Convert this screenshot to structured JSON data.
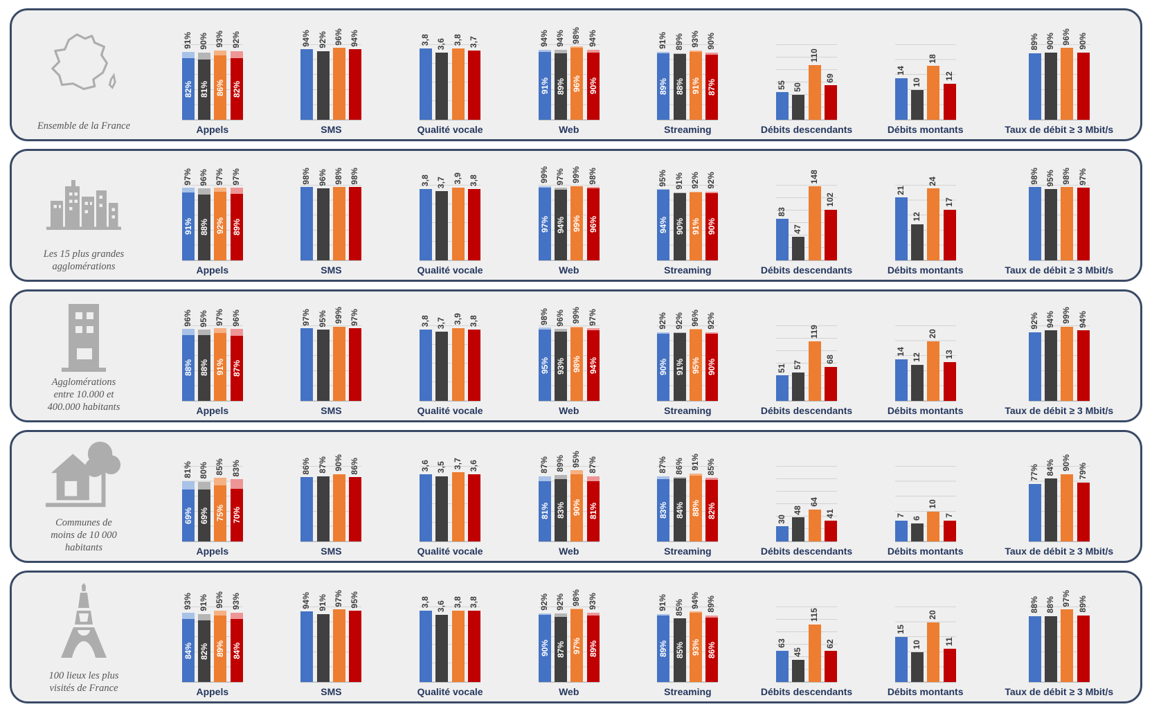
{
  "palette": {
    "solid": [
      "#4472C4",
      "#404040",
      "#ED7D31",
      "#C00000"
    ],
    "light": [
      "#A9C2E8",
      "#B5B5B5",
      "#F5B183",
      "#EE9596"
    ],
    "panel_bg": "#EFEFEF",
    "panel_border": "#3A4A66",
    "grid_line": "#D2D2D2",
    "metric_label_color": "#24365E",
    "region_label_color": "#555555",
    "icon_color": "#ADADAD"
  },
  "chart_data": {
    "type": "bar",
    "series_count_per_chart": 4,
    "legend_position": "none",
    "grid": "on",
    "metrics": [
      {
        "key": "appels",
        "label": "Appels",
        "kind": "stacked-pct",
        "max": 100,
        "grid_step_pct": 20
      },
      {
        "key": "sms",
        "label": "SMS",
        "kind": "pct",
        "max": 100,
        "grid_step_pct": 20
      },
      {
        "key": "vocale",
        "label": "Qualité vocale",
        "kind": "score",
        "max": 4,
        "grid_step_pct": 25
      },
      {
        "key": "web",
        "label": "Web",
        "kind": "stacked-pct",
        "max": 100,
        "grid_step_pct": 20
      },
      {
        "key": "streaming",
        "label": "Streaming",
        "kind": "stacked-pct",
        "max": 100,
        "grid_step_pct": 20
      },
      {
        "key": "debits_desc",
        "label": "Débits descendants",
        "kind": "mbps",
        "max": 150,
        "grid_step_pct": 16.6667
      },
      {
        "key": "debits_mont",
        "label": "Débits montants",
        "kind": "mbps",
        "max": 25,
        "grid_step_pct": 20
      },
      {
        "key": "taux3",
        "label": "Taux de débit ≥ 3 Mbit/s",
        "kind": "pct",
        "max": 100,
        "grid_step_pct": 20
      }
    ],
    "rows": [
      {
        "icon": "france-map-icon",
        "label_lines": [
          "Ensemble de la France"
        ],
        "appels": {
          "total": [
            91,
            90,
            93,
            92
          ],
          "base": [
            82,
            81,
            86,
            82
          ]
        },
        "sms": [
          94,
          92,
          96,
          94
        ],
        "vocale": [
          "3,8",
          "3,6",
          "3,8",
          "3,7"
        ],
        "web": {
          "total": [
            94,
            94,
            98,
            94
          ],
          "base": [
            91,
            89,
            96,
            90
          ]
        },
        "streaming": {
          "total": [
            91,
            89,
            93,
            90
          ],
          "base": [
            89,
            88,
            91,
            87
          ]
        },
        "debits_desc": [
          55,
          50,
          110,
          69
        ],
        "debits_mont": [
          14,
          10,
          18,
          12
        ],
        "taux3": [
          89,
          90,
          96,
          90
        ]
      },
      {
        "icon": "city-skyline-icon",
        "label_lines": [
          "Les 15 plus grandes",
          "agglomérations"
        ],
        "appels": {
          "total": [
            97,
            96,
            97,
            97
          ],
          "base": [
            91,
            88,
            92,
            89
          ]
        },
        "sms": [
          98,
          96,
          98,
          98
        ],
        "vocale": [
          "3,8",
          "3,7",
          "3,9",
          "3,8"
        ],
        "web": {
          "total": [
            99,
            97,
            99,
            98
          ],
          "base": [
            97,
            94,
            99,
            96
          ]
        },
        "streaming": {
          "total": [
            95,
            91,
            92,
            92
          ],
          "base": [
            94,
            90,
            91,
            90
          ]
        },
        "debits_desc": [
          83,
          47,
          148,
          102
        ],
        "debits_mont": [
          21,
          12,
          24,
          17
        ],
        "taux3": [
          98,
          95,
          98,
          97
        ]
      },
      {
        "icon": "building-icon",
        "label_lines": [
          "Agglomérations",
          "entre 10.000 et",
          "400.000 habitants"
        ],
        "appels": {
          "total": [
            96,
            95,
            97,
            96
          ],
          "base": [
            88,
            88,
            91,
            87
          ]
        },
        "sms": [
          97,
          95,
          99,
          97
        ],
        "vocale": [
          "3,8",
          "3,7",
          "3,9",
          "3,8"
        ],
        "web": {
          "total": [
            98,
            96,
            99,
            97
          ],
          "base": [
            95,
            93,
            98,
            94
          ]
        },
        "streaming": {
          "total": [
            92,
            92,
            96,
            92
          ],
          "base": [
            90,
            91,
            95,
            90
          ]
        },
        "debits_desc": [
          51,
          57,
          119,
          68
        ],
        "debits_mont": [
          14,
          12,
          20,
          13
        ],
        "taux3": [
          92,
          94,
          99,
          94
        ]
      },
      {
        "icon": "house-tree-icon",
        "label_lines": [
          "Communes de",
          "moins de 10 000",
          "habitants"
        ],
        "appels": {
          "total": [
            81,
            80,
            85,
            83
          ],
          "base": [
            69,
            69,
            75,
            70
          ]
        },
        "sms": [
          86,
          87,
          90,
          86
        ],
        "vocale": [
          "3,6",
          "3,5",
          "3,7",
          "3,6"
        ],
        "web": {
          "total": [
            87,
            89,
            95,
            87
          ],
          "base": [
            81,
            83,
            90,
            81
          ]
        },
        "streaming": {
          "total": [
            87,
            86,
            91,
            85
          ],
          "base": [
            83,
            84,
            88,
            82
          ]
        },
        "debits_desc": [
          30,
          48,
          64,
          41
        ],
        "debits_mont": [
          7,
          6,
          10,
          7
        ],
        "taux3": [
          77,
          84,
          90,
          79
        ]
      },
      {
        "icon": "eiffel-tower-icon",
        "label_lines": [
          "100 lieux les plus",
          "visités de France"
        ],
        "appels": {
          "total": [
            93,
            91,
            95,
            93
          ],
          "base": [
            84,
            82,
            89,
            84
          ]
        },
        "sms": [
          94,
          91,
          97,
          95
        ],
        "vocale": [
          "3,8",
          "3,6",
          "3,8",
          "3,8"
        ],
        "web": {
          "total": [
            92,
            92,
            98,
            93
          ],
          "base": [
            90,
            87,
            97,
            89
          ]
        },
        "streaming": {
          "total": [
            91,
            85,
            94,
            89
          ],
          "base": [
            89,
            85,
            93,
            86
          ]
        },
        "debits_desc": [
          63,
          45,
          115,
          62
        ],
        "debits_mont": [
          15,
          10,
          20,
          11
        ],
        "taux3": [
          88,
          88,
          97,
          89
        ]
      }
    ]
  }
}
